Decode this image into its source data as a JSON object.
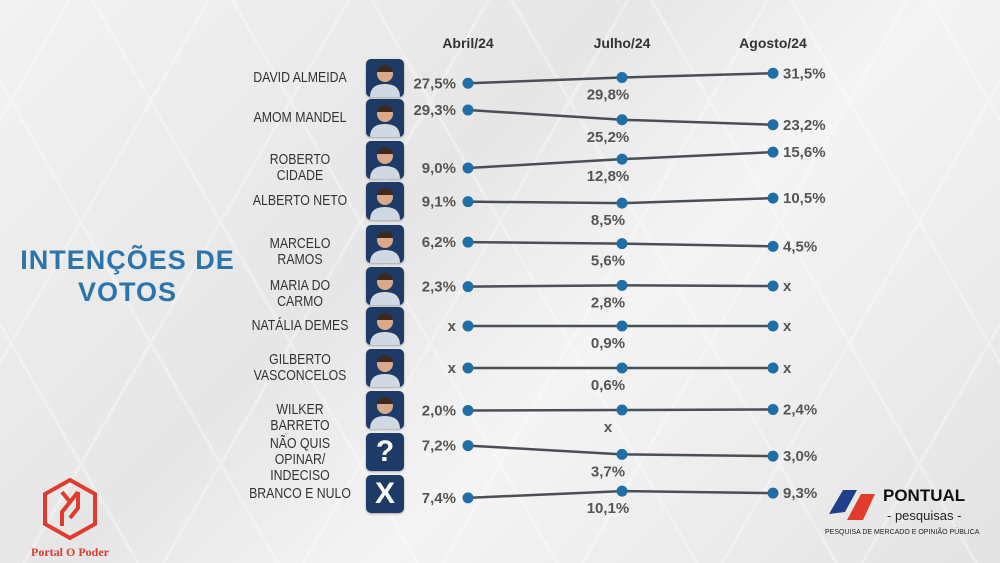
{
  "chart_data": {
    "type": "line",
    "title": "INTENÇÕES DE VOTOS",
    "categories": [
      "Abril/24",
      "Julho/24",
      "Agosto/24"
    ],
    "missing_marker": "x",
    "series": [
      {
        "name": "DAVID ALMEIDA",
        "values": [
          27.5,
          29.8,
          31.5
        ],
        "labels": [
          "27,5%",
          "29,8%",
          "31,5%"
        ]
      },
      {
        "name": "AMOM MANDEL",
        "values": [
          29.3,
          25.2,
          23.2
        ],
        "labels": [
          "29,3%",
          "25,2%",
          "23,2%"
        ]
      },
      {
        "name": "ROBERTO CIDADE",
        "values": [
          9.0,
          12.8,
          15.6
        ],
        "labels": [
          "9,0%",
          "12,8%",
          "15,6%"
        ]
      },
      {
        "name": "ALBERTO NETO",
        "values": [
          9.1,
          8.5,
          10.5
        ],
        "labels": [
          "9,1%",
          "8,5%",
          "10,5%"
        ]
      },
      {
        "name": "MARCELO RAMOS",
        "values": [
          6.2,
          5.6,
          4.5
        ],
        "labels": [
          "6,2%",
          "5,6%",
          "4,5%"
        ]
      },
      {
        "name": "MARIA DO CARMO",
        "values": [
          2.3,
          2.8,
          null
        ],
        "labels": [
          "2,3%",
          "2,8%",
          "x"
        ]
      },
      {
        "name": "NATÁLIA DEMES",
        "values": [
          null,
          0.9,
          null
        ],
        "labels": [
          "x",
          "0,9%",
          "x"
        ]
      },
      {
        "name": "GILBERTO VASCONCELOS",
        "values": [
          null,
          0.6,
          null
        ],
        "labels": [
          "x",
          "0,6%",
          "x"
        ]
      },
      {
        "name": "WILKER BARRETO",
        "values": [
          2.0,
          null,
          2.4
        ],
        "labels": [
          "2,0%",
          "x",
          "2,4%"
        ]
      },
      {
        "name": "NÃO QUIS OPINAR/ INDECISO",
        "values": [
          7.2,
          3.7,
          3.0
        ],
        "labels": [
          "7,2%",
          "3,7%",
          "3,0%"
        ],
        "symbol": "?"
      },
      {
        "name": "BRANCO E NULO",
        "values": [
          7.4,
          10.1,
          9.3
        ],
        "labels": [
          "7,4%",
          "10,1%",
          "9,3%"
        ],
        "symbol": "X"
      }
    ],
    "colors": {
      "dot": "#1f6fa6",
      "line": "#4a4f55",
      "title": "#2c74ad"
    }
  },
  "branding": {
    "left_logo": "Portal O Poder",
    "right_logo_title": "PONTUAL",
    "right_logo_subtitle": "- pesquisas -",
    "right_logo_tagline": "PESQUISA DE MERCADO E OPINIÃO PÚBLICA"
  }
}
